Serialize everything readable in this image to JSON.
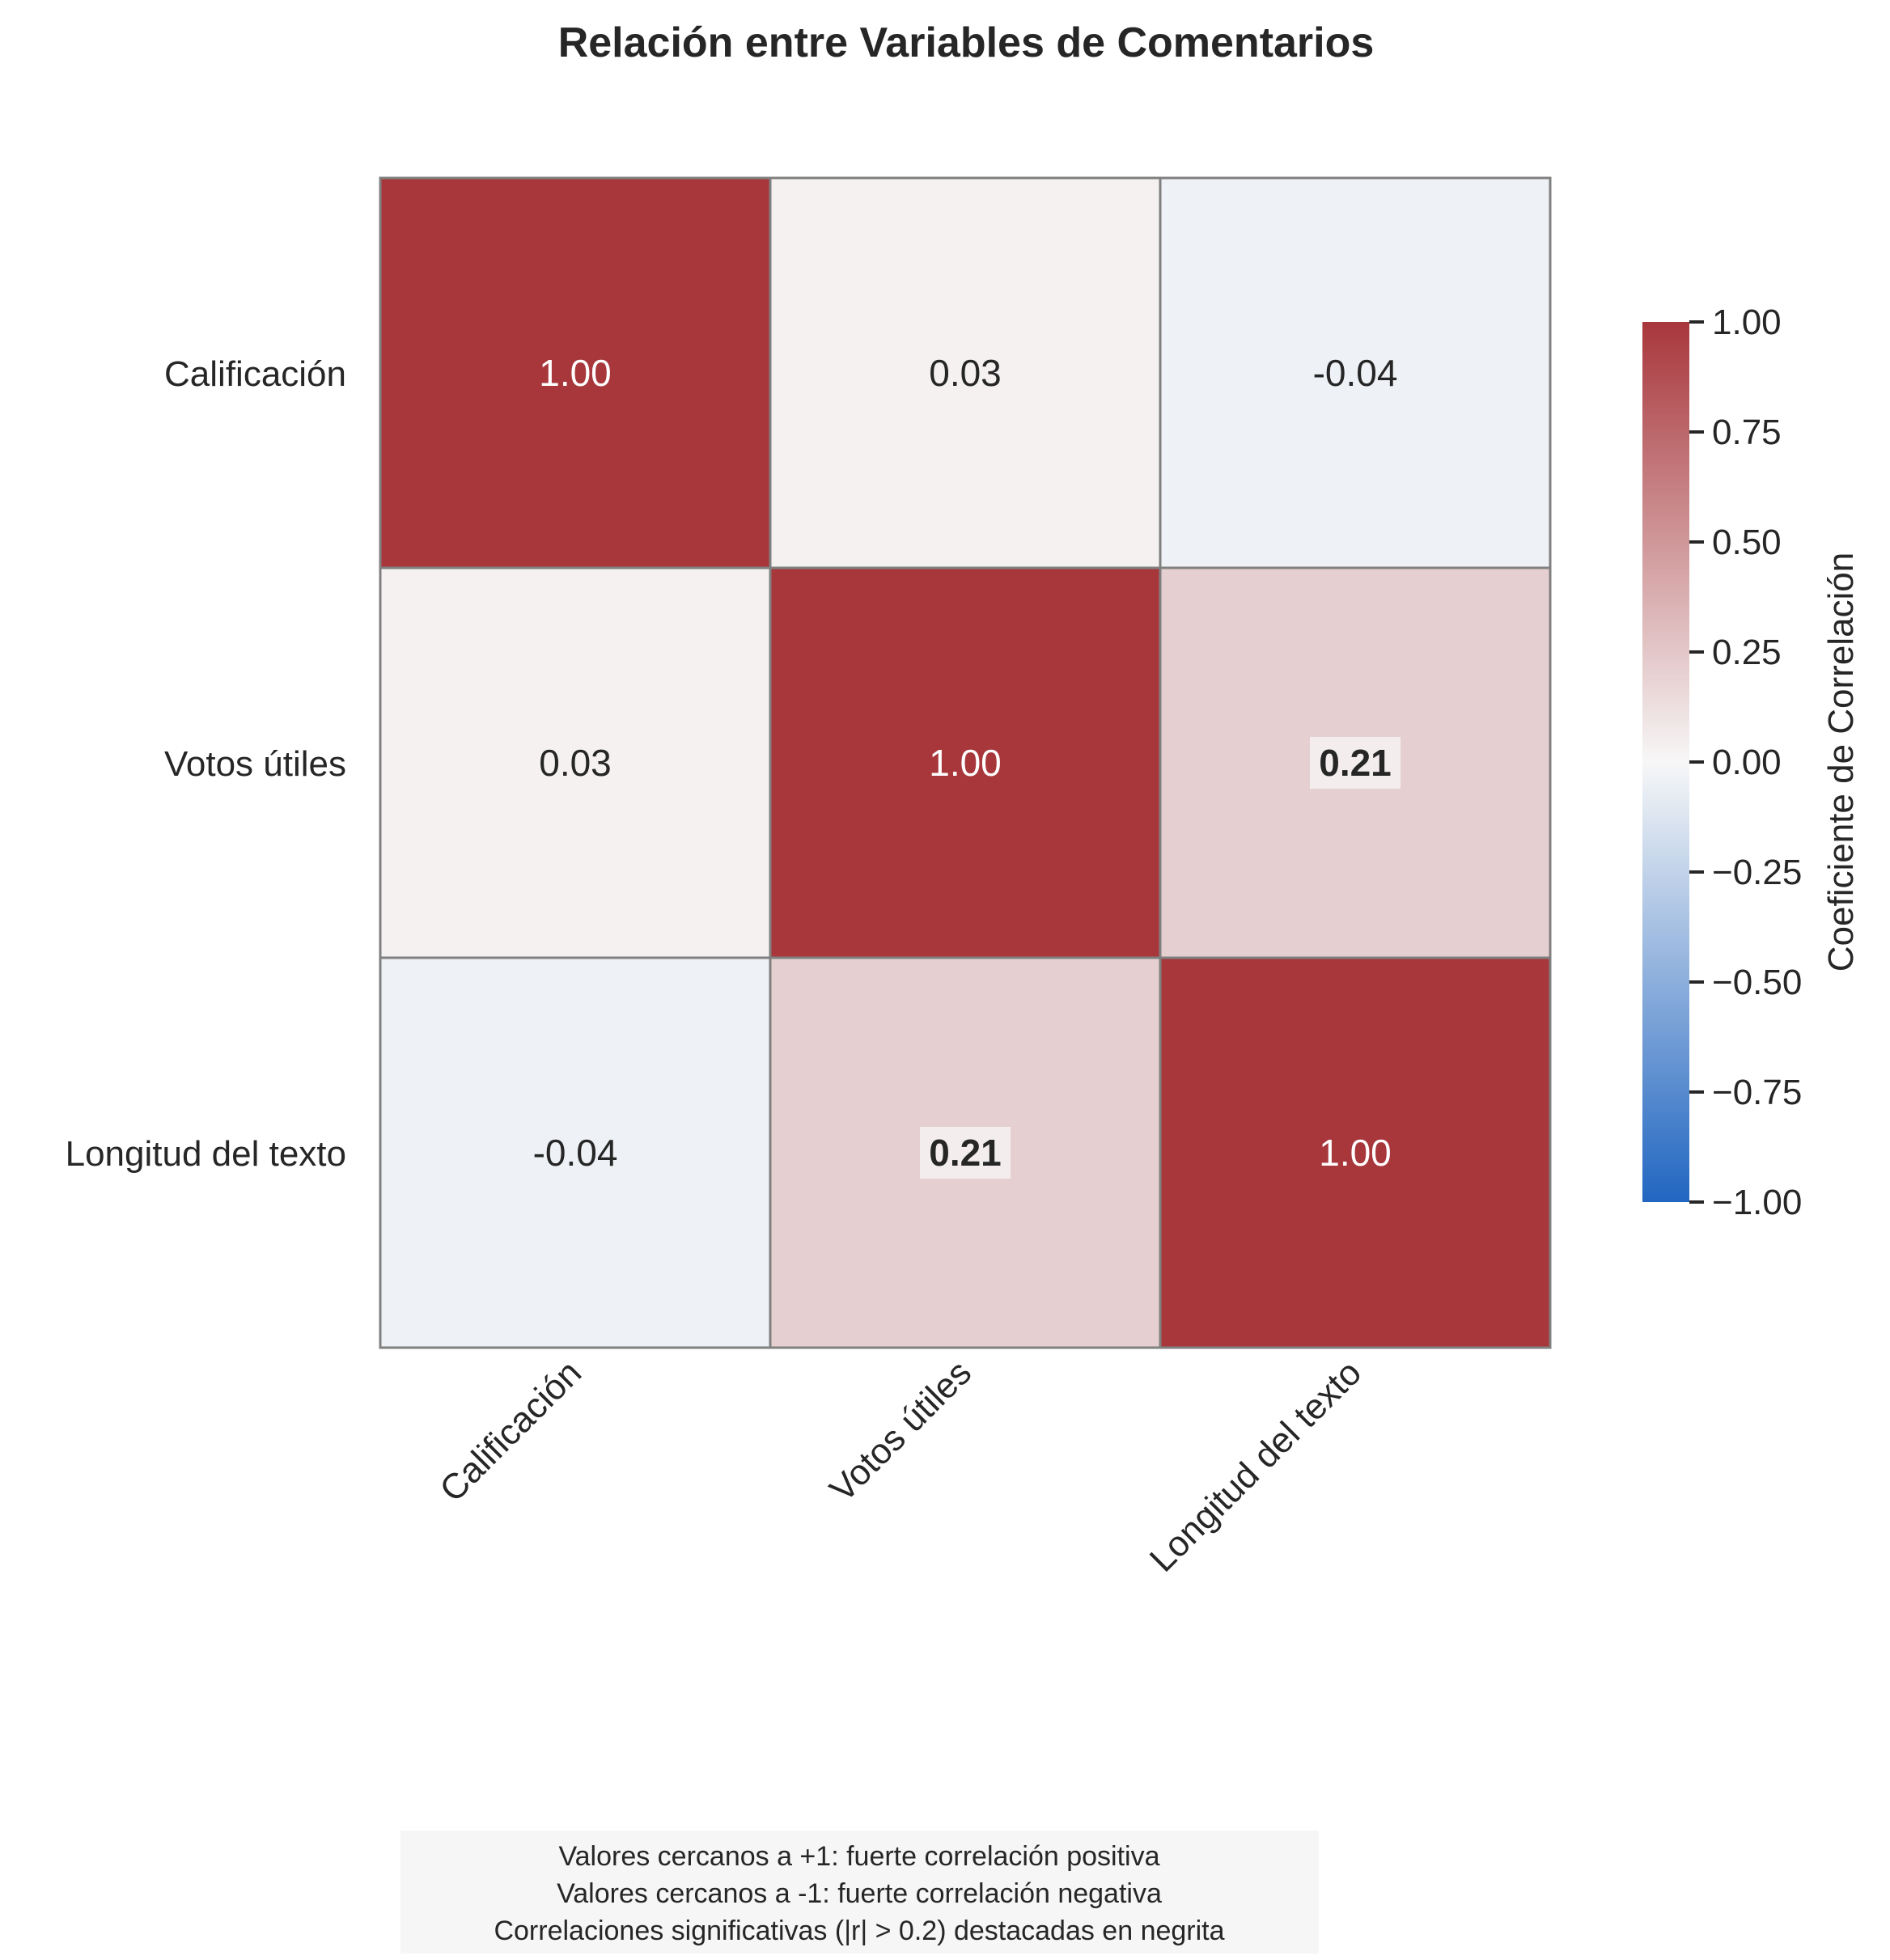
{
  "chart_data": {
    "type": "heatmap",
    "title": "Relación entre Variables de Comentarios",
    "row_labels": [
      "Calificación",
      "Votos útiles",
      "Longitud del texto"
    ],
    "col_labels": [
      "Calificación",
      "Votos útiles",
      "Longitud del texto"
    ],
    "values": [
      [
        1.0,
        0.03,
        -0.04
      ],
      [
        0.03,
        1.0,
        0.21
      ],
      [
        -0.04,
        0.21,
        1.0
      ]
    ],
    "cell_text": [
      [
        "1.00",
        "0.03",
        "-0.04"
      ],
      [
        "0.03",
        "1.00",
        "0.21"
      ],
      [
        "-0.04",
        "0.21",
        "1.00"
      ]
    ],
    "highlight_threshold": 0.2,
    "colorbar": {
      "label": "Coeficiente de Correlación",
      "range": [
        -1,
        1
      ],
      "ticks": [
        1.0,
        0.75,
        0.5,
        0.25,
        0.0,
        -0.25,
        -0.5,
        -0.75,
        -1.0
      ],
      "tick_labels": [
        "1.00",
        "0.75",
        "0.50",
        "0.25",
        "0.00",
        "−0.25",
        "−0.50",
        "−0.75",
        "−1.00"
      ],
      "colors": {
        "negative": "#2166c1",
        "neutral": "#f7f7f7",
        "positive": "#a8373c"
      }
    },
    "note_lines": [
      "Valores cercanos a +1: fuerte correlación positiva",
      "Valores cercanos a -1: fuerte correlación negativa",
      "Correlaciones significativas (|r| > 0.2) destacadas en negrita"
    ],
    "legend": "right"
  }
}
